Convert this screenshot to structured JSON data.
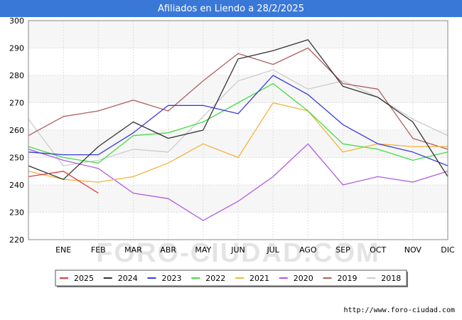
{
  "chart_data": {
    "type": "line",
    "title": "Afiliados en Liendo a 28/2/2025",
    "watermark": "FORO-CIUDAD.COM",
    "source": "http://www.foro-ciudad.com",
    "categories": [
      "",
      "ENE",
      "FEB",
      "MAR",
      "ABR",
      "MAY",
      "JUN",
      "JUL",
      "AGO",
      "SEP",
      "OCT",
      "NOV",
      "DIC"
    ],
    "ylim": [
      220,
      300
    ],
    "yticks": [
      220,
      230,
      240,
      250,
      260,
      270,
      280,
      290,
      300
    ],
    "grid": true,
    "legend_position": "bottom",
    "series": [
      {
        "name": "2025",
        "color": "#e03c3c",
        "values": [
          243,
          245,
          237,
          null,
          null,
          null,
          null,
          null,
          null,
          null,
          null,
          null,
          null
        ]
      },
      {
        "name": "2024",
        "color": "#333333",
        "values": [
          247,
          242,
          254,
          263,
          257,
          260,
          286,
          289,
          293,
          276,
          272,
          263,
          243
        ]
      },
      {
        "name": "2023",
        "color": "#3b3bd9",
        "values": [
          252,
          251,
          251,
          259,
          269,
          269,
          266,
          280,
          273,
          262,
          255,
          252,
          247
        ]
      },
      {
        "name": "2022",
        "color": "#44dd44",
        "values": [
          254,
          250,
          248,
          258,
          259,
          263,
          270,
          277,
          267,
          255,
          253,
          249,
          252
        ]
      },
      {
        "name": "2021",
        "color": "#f2b33d",
        "values": [
          245,
          242,
          241,
          243,
          248,
          255,
          250,
          270,
          267,
          252,
          255,
          254,
          254
        ]
      },
      {
        "name": "2020",
        "color": "#b05ce0",
        "values": [
          253,
          249,
          246,
          237,
          235,
          227,
          234,
          243,
          255,
          240,
          243,
          241,
          245
        ]
      },
      {
        "name": "2019",
        "color": "#b06060",
        "values": [
          258,
          265,
          267,
          271,
          267,
          278,
          288,
          284,
          290,
          277,
          275,
          257,
          253
        ]
      },
      {
        "name": "2018",
        "color": "#cccccc",
        "values": [
          264,
          247,
          249,
          253,
          252,
          265,
          278,
          282,
          275,
          278,
          272,
          264,
          258
        ]
      }
    ]
  }
}
